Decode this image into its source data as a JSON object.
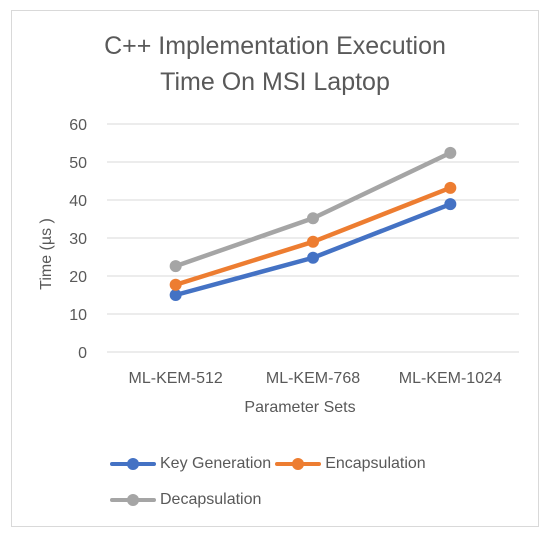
{
  "chart_data": {
    "type": "line",
    "title_lines": [
      "C++ Implementation  Execution",
      "Time  On MSI Laptop"
    ],
    "xlabel": "Parameter Sets",
    "ylabel": "Time (µs )",
    "categories": [
      "ML-KEM-512",
      "ML-KEM-768",
      "ML-KEM-1024"
    ],
    "ylim": [
      0,
      60
    ],
    "yticks": [
      0,
      10,
      20,
      30,
      40,
      50,
      60
    ],
    "grid": true,
    "legend_position": "bottom",
    "series": [
      {
        "name": "Key Generation",
        "color": "#4472c4",
        "values": [
          15.0,
          24.8,
          38.9
        ]
      },
      {
        "name": "Encapsulation",
        "color": "#ed7d31",
        "values": [
          17.7,
          29.0,
          43.2
        ]
      },
      {
        "name": "Decapsulation",
        "color": "#a5a5a5",
        "values": [
          22.6,
          35.2,
          52.4
        ]
      }
    ]
  }
}
